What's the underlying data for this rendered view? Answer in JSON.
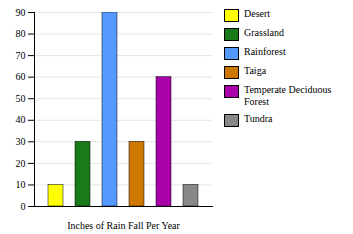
{
  "chart_data": {
    "type": "bar",
    "categories": [
      "Desert",
      "Grassland",
      "Rainforest",
      "Taiga",
      "Temperate Deciduous\nForest",
      "Tundra"
    ],
    "values": [
      10,
      30,
      90,
      30,
      60,
      10
    ],
    "colors": [
      "#FFFF00",
      "#1A7A1A",
      "#5599FF",
      "#CC7700",
      "#AA00AA",
      "#888888"
    ],
    "xlabel": "Inches of Rain Fall Per Year",
    "ylim": [
      0,
      90
    ],
    "yticks": [
      0,
      10,
      20,
      30,
      40,
      50,
      60,
      70,
      80,
      90
    ],
    "grid": true,
    "legend": "right",
    "tick_labels": "y"
  }
}
